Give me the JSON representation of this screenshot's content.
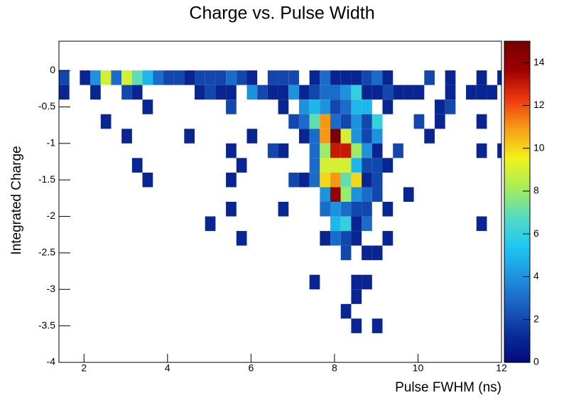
{
  "chart_data": {
    "type": "heatmap",
    "title": "Charge vs. Pulse Width",
    "xlabel": "Pulse FWHM (ns)",
    "ylabel": "Integrated Charge",
    "xlim": [
      1.4,
      12
    ],
    "ylim": [
      -4,
      0.4
    ],
    "zlim": [
      0,
      15
    ],
    "xticks": [
      2,
      4,
      6,
      8,
      10,
      12
    ],
    "yticks": [
      -4,
      -3.5,
      -3,
      -2.5,
      -2,
      -1.5,
      -1,
      -0.5,
      0
    ],
    "zticks": [
      0,
      2,
      4,
      6,
      8,
      10,
      12,
      14
    ],
    "xbin_width": 0.25,
    "ybin_width": 0.2,
    "colormap": [
      "#000a7a",
      "#0b2f9a",
      "#1a62c4",
      "#1f95e0",
      "#1ec8f2",
      "#55dcc0",
      "#a6ee5a",
      "#f2f21a",
      "#f5a015",
      "#f03a10",
      "#a00000",
      "#780000"
    ],
    "rows": [
      {
        "y": -0.2,
        "x": [
          1.4,
          1.9,
          2.15,
          2.4,
          2.65,
          2.9,
          3.15,
          3.4,
          3.65,
          3.9,
          4.15,
          4.4,
          4.65,
          4.9,
          5.15,
          5.4,
          5.65,
          5.9,
          6.4,
          6.65,
          6.9,
          7.4,
          7.65,
          7.9,
          8.15,
          8.4,
          8.65,
          8.9,
          9.15,
          10.15,
          10.65,
          11.4,
          11.9
        ],
        "values": [
          2,
          1,
          4,
          9,
          3,
          9,
          7,
          5,
          3,
          2,
          2,
          1,
          2,
          2,
          2,
          3,
          2,
          1,
          2,
          2,
          2,
          1,
          3,
          1,
          1,
          1,
          2,
          3,
          1,
          2,
          1,
          1,
          1
        ]
      },
      {
        "y": -0.4,
        "x": [
          1.4,
          2.15,
          2.9,
          3.15,
          4.65,
          4.9,
          5.15,
          5.4,
          5.9,
          6.15,
          6.4,
          6.65,
          6.9,
          7.15,
          7.4,
          7.65,
          7.9,
          8.15,
          8.4,
          8.65,
          8.9,
          9.15,
          9.4,
          9.65,
          9.9,
          10.65,
          11.15,
          11.4,
          11.65
        ],
        "values": [
          1,
          1,
          2,
          1,
          1,
          2,
          1,
          1,
          4,
          2,
          1,
          1,
          4,
          1,
          2,
          3,
          3,
          4,
          6,
          1,
          1,
          2,
          1,
          1,
          1,
          1,
          1,
          1,
          1
        ]
      },
      {
        "y": -0.6,
        "x": [
          3.4,
          5.4,
          6.65,
          7.15,
          7.4,
          7.65,
          7.9,
          8.15,
          8.4,
          8.65,
          9.15,
          10.4,
          10.65
        ],
        "values": [
          1,
          2,
          1,
          4,
          5,
          4,
          2,
          3,
          5,
          5,
          1,
          1,
          2
        ]
      },
      {
        "y": -0.8,
        "x": [
          2.4,
          6.9,
          7.15,
          7.4,
          7.65,
          7.9,
          8.15,
          8.4,
          8.65,
          8.9,
          9.9,
          10.4,
          11.4
        ],
        "values": [
          1,
          2,
          3,
          7,
          11,
          3,
          2,
          4,
          2,
          6,
          2,
          1,
          1
        ]
      },
      {
        "y": -1.0,
        "x": [
          2.9,
          4.4,
          5.9,
          7.15,
          7.4,
          7.65,
          7.9,
          8.15,
          8.4,
          8.65,
          8.9,
          10.15
        ],
        "values": [
          1,
          1,
          1,
          1,
          3,
          11,
          15,
          9,
          4,
          2,
          4,
          1
        ]
      },
      {
        "y": -1.2,
        "x": [
          5.4,
          6.4,
          6.65,
          7.4,
          7.65,
          7.9,
          8.15,
          8.4,
          8.65,
          8.9,
          9.4,
          11.4,
          11.9
        ],
        "values": [
          1,
          2,
          1,
          3,
          8,
          13,
          13,
          8,
          4,
          1,
          2,
          1,
          1
        ]
      },
      {
        "y": -1.4,
        "x": [
          3.15,
          5.65,
          7.4,
          7.65,
          7.9,
          8.15,
          8.4,
          8.65,
          8.9,
          9.15
        ],
        "values": [
          1,
          1,
          3,
          9,
          9,
          9,
          5,
          2,
          2,
          1
        ]
      },
      {
        "y": -1.6,
        "x": [
          3.4,
          5.4,
          6.9,
          7.15,
          7.4,
          7.65,
          7.9,
          8.15,
          8.4,
          8.65,
          8.9
        ],
        "values": [
          1,
          1,
          2,
          1,
          3,
          10,
          11,
          7,
          10,
          1,
          2
        ]
      },
      {
        "y": -1.8,
        "x": [
          7.65,
          7.9,
          8.15,
          8.4,
          8.65,
          8.9,
          9.65
        ],
        "values": [
          4,
          14,
          8,
          4,
          3,
          2,
          1
        ]
      },
      {
        "y": -2.0,
        "x": [
          5.4,
          6.65,
          7.65,
          7.9,
          8.15,
          8.4,
          8.65,
          9.15
        ],
        "values": [
          1,
          1,
          3,
          4,
          3,
          2,
          2,
          1
        ]
      },
      {
        "y": -2.2,
        "x": [
          4.9,
          7.9,
          8.15,
          8.4,
          8.65,
          11.4
        ],
        "values": [
          1,
          5,
          6,
          1,
          3,
          1
        ]
      },
      {
        "y": -2.4,
        "x": [
          5.65,
          7.65,
          7.9,
          8.15,
          8.4,
          9.15
        ],
        "values": [
          1,
          1,
          3,
          2,
          1,
          1
        ]
      },
      {
        "y": -2.6,
        "x": [
          8.15,
          8.65,
          8.9
        ],
        "values": [
          2,
          1,
          1
        ]
      },
      {
        "y": -3.0,
        "x": [
          7.4,
          8.4,
          8.65
        ],
        "values": [
          1,
          1,
          1
        ]
      },
      {
        "y": -3.2,
        "x": [
          8.4
        ],
        "values": [
          1
        ]
      },
      {
        "y": -3.4,
        "x": [
          8.15
        ],
        "values": [
          1
        ]
      },
      {
        "y": -3.6,
        "x": [
          8.4,
          8.9
        ],
        "values": [
          1,
          1
        ]
      }
    ]
  }
}
